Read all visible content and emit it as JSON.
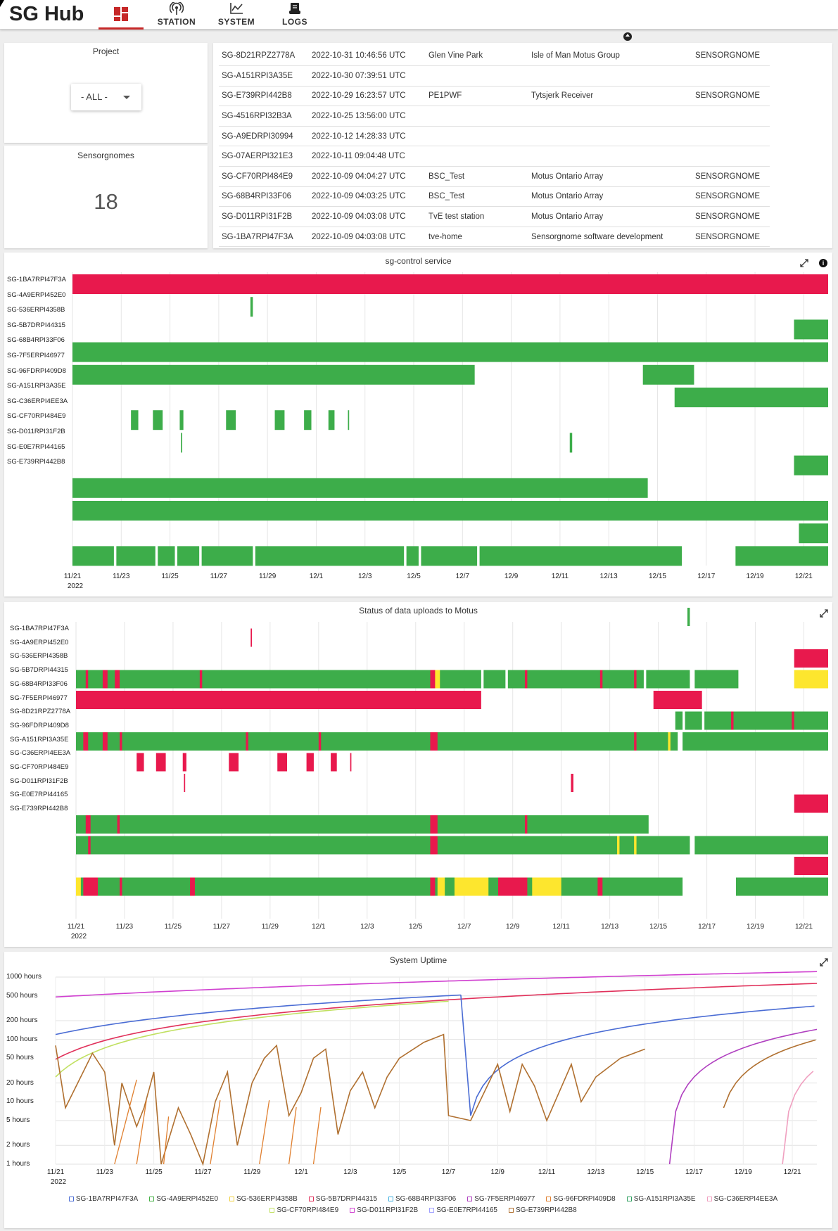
{
  "app": {
    "title": "SG Hub"
  },
  "nav": [
    {
      "label": "STATION"
    },
    {
      "label": "SYSTEM"
    },
    {
      "label": "LOGS"
    }
  ],
  "project": {
    "label": "Project",
    "selected": "- ALL -"
  },
  "sensorgnomes": {
    "label": "Sensorgnomes",
    "count": "18"
  },
  "stations": [
    [
      "SG-8D21RPZ2778A",
      "2022-10-31 10:46:56 UTC",
      "Glen Vine Park",
      "Isle of Man Motus Group",
      "SENSORGNOME"
    ],
    [
      "SG-A151RPI3A35E",
      "2022-10-30 07:39:51 UTC",
      "",
      "",
      ""
    ],
    [
      "SG-E739RPI442B8",
      "2022-10-29 16:23:57 UTC",
      "PE1PWF",
      "Tytsjerk Receiver",
      "SENSORGNOME"
    ],
    [
      "SG-4516RPI32B3A",
      "2022-10-25 13:56:00 UTC",
      "",
      "",
      ""
    ],
    [
      "SG-A9EDRPI30994",
      "2022-10-12 14:28:33 UTC",
      "",
      "",
      ""
    ],
    [
      "SG-07AERPI321E3",
      "2022-10-11 09:04:48 UTC",
      "",
      "",
      ""
    ],
    [
      "SG-CF70RPI484E9",
      "2022-10-09 04:04:27 UTC",
      "BSC_Test",
      "Motus Ontario Array",
      "SENSORGNOME"
    ],
    [
      "SG-68B4RPI33F06",
      "2022-10-09 04:03:25 UTC",
      "BSC_Test",
      "Motus Ontario Array",
      "SENSORGNOME"
    ],
    [
      "SG-D011RPI31F2B",
      "2022-10-09 04:03:08 UTC",
      "TvE test station",
      "Motus Ontario Array",
      "SENSORGNOME"
    ],
    [
      "SG-1BA7RPI47F3A",
      "2022-10-09 04:03:08 UTC",
      "tve-home",
      "Sensorgnome software development",
      "SENSORGNOME"
    ]
  ],
  "colors": {
    "ok": "#3dad4a",
    "bad": "#e8194d",
    "warn": "#fde62e"
  },
  "xaxis": {
    "ticks": [
      "11/21",
      "11/23",
      "11/25",
      "11/27",
      "11/29",
      "12/1",
      "12/3",
      "12/5",
      "12/7",
      "12/9",
      "12/11",
      "12/13",
      "12/15",
      "12/17",
      "12/19",
      "12/21"
    ],
    "year": "2022"
  },
  "control": {
    "title": "sg-control service",
    "labels": [
      "SG-1BA7RPI47F3A",
      "SG-4A9ERPI452E0",
      "SG-536ERPI4358B",
      "SG-5B7DRPI44315",
      "SG-68B4RPI33F06",
      "SG-7F5ERPI46977",
      "SG-96FDRPI409D8",
      "SG-A151RPI3A35E",
      "SG-C36ERPI4EE3A",
      "SG-CF70RPI484E9",
      "SG-D011RPI31F2B",
      "SG-E0E7RPI44165",
      "SG-E739RPI442B8"
    ],
    "rows": [
      [
        [
          "bad",
          0,
          31
        ]
      ],
      [
        [
          "ok",
          7.3,
          7.4
        ]
      ],
      [
        [
          "ok",
          29.6,
          31
        ]
      ],
      [
        [
          "ok",
          0,
          31
        ]
      ],
      [
        [
          "ok",
          0,
          16.5
        ],
        [
          "ok",
          23.4,
          25.5
        ]
      ],
      [
        [
          "ok",
          24.7,
          31
        ]
      ],
      [
        [
          "ok",
          2.4,
          2.7
        ],
        [
          "ok",
          3.3,
          3.7
        ],
        [
          "ok",
          4.4,
          4.55
        ],
        [
          "ok",
          6.3,
          6.7
        ],
        [
          "ok",
          8.3,
          8.7
        ],
        [
          "ok",
          9.5,
          9.8
        ],
        [
          "ok",
          10.5,
          10.75
        ],
        [
          "ok",
          11.3,
          11.35
        ]
      ],
      [
        [
          "ok",
          4.45,
          4.5
        ],
        [
          "ok",
          20.4,
          20.5
        ]
      ],
      [
        [
          "ok",
          29.6,
          31
        ]
      ],
      [
        [
          "ok",
          0,
          23.6
        ]
      ],
      [
        [
          "ok",
          0,
          31
        ]
      ],
      [
        [
          "ok",
          29.8,
          31
        ]
      ],
      [
        [
          "ok",
          0,
          1.7
        ],
        [
          "ok",
          1.8,
          3.4
        ],
        [
          "ok",
          3.5,
          4.2
        ],
        [
          "ok",
          4.3,
          5.2
        ],
        [
          "ok",
          5.3,
          7.4
        ],
        [
          "ok",
          7.5,
          13.6
        ],
        [
          "ok",
          13.7,
          14.2
        ],
        [
          "ok",
          14.3,
          16.6
        ],
        [
          "ok",
          16.7,
          25
        ],
        [
          "ok",
          27.2,
          31
        ]
      ]
    ]
  },
  "uploads": {
    "title": "Status of data uploads to Motus",
    "labels": [
      "SG-1BA7RPI47F3A",
      "SG-4A9ERPI452E0",
      "SG-536ERPI4358B",
      "SG-5B7DRPI44315",
      "SG-68B4RPI33F06",
      "SG-7F5ERPI46977",
      "SG-8D21RPZ2778A",
      "SG-96FDRPI409D8",
      "SG-A151RPI3A35E",
      "SG-C36ERPI4EE3A",
      "SG-CF70RPI484E9",
      "SG-D011RPI31F2B",
      "SG-E0E7RPI44165",
      "SG-E739RPI442B8"
    ],
    "rows": [
      [
        [
          "ok",
          25.2,
          25.3
        ]
      ],
      [
        [
          "bad",
          7.2,
          7.25
        ]
      ],
      [
        [
          "bad",
          29.6,
          31
        ]
      ],
      [
        [
          "ok",
          0,
          16.7
        ],
        [
          "ok",
          16.8,
          17.7
        ],
        [
          "ok",
          17.8,
          23.4
        ],
        [
          "ok",
          23.5,
          25.3
        ],
        [
          "ok",
          25.5,
          27.3
        ],
        [
          "warn",
          29.6,
          31
        ],
        [
          "bad",
          0.4,
          0.5
        ],
        [
          "bad",
          1.1,
          1.3
        ],
        [
          "bad",
          1.6,
          1.8
        ],
        [
          "bad",
          5.1,
          5.2
        ],
        [
          "bad",
          14.6,
          14.9
        ],
        [
          "warn",
          14.8,
          15
        ],
        [
          "bad",
          18.5,
          18.6
        ],
        [
          "bad",
          21.6,
          21.7
        ],
        [
          "bad",
          23,
          23.1
        ]
      ],
      [
        [
          "bad",
          0,
          16.7
        ],
        [
          "bad",
          23.8,
          25.8
        ]
      ],
      [
        [
          "ok",
          24.7,
          25
        ],
        [
          "ok",
          25.1,
          25.8
        ],
        [
          "ok",
          25.9,
          31
        ],
        [
          "bad",
          27,
          27.1
        ],
        [
          "bad",
          29.5,
          29.6
        ]
      ],
      [
        [
          "ok",
          0,
          24.8
        ],
        [
          "ok",
          25,
          31
        ],
        [
          "bad",
          0.3,
          0.5
        ],
        [
          "bad",
          1.1,
          1.3
        ],
        [
          "bad",
          1.8,
          1.9
        ],
        [
          "bad",
          7,
          7.1
        ],
        [
          "bad",
          10,
          10.1
        ],
        [
          "bad",
          14.6,
          14.9
        ],
        [
          "bad",
          23,
          23.1
        ],
        [
          "warn",
          24.4,
          24.5
        ]
      ],
      [
        [
          "bad",
          2.5,
          2.8
        ],
        [
          "bad",
          3.3,
          3.7
        ],
        [
          "bad",
          4.4,
          4.55
        ],
        [
          "bad",
          6.3,
          6.7
        ],
        [
          "bad",
          8.3,
          8.7
        ],
        [
          "bad",
          9.5,
          9.8
        ],
        [
          "bad",
          10.5,
          10.75
        ],
        [
          "bad",
          11.3,
          11.35
        ]
      ],
      [
        [
          "bad",
          4.45,
          4.5
        ],
        [
          "bad",
          20.4,
          20.5
        ]
      ],
      [
        [
          "bad",
          29.6,
          31
        ]
      ],
      [
        [
          "ok",
          0,
          23.6
        ],
        [
          "bad",
          0.4,
          0.6
        ],
        [
          "bad",
          1.7,
          1.8
        ],
        [
          "bad",
          14.6,
          14.9
        ],
        [
          "bad",
          18.5,
          18.6
        ]
      ],
      [
        [
          "ok",
          0,
          25.3
        ],
        [
          "ok",
          25.5,
          31
        ],
        [
          "bad",
          0.5,
          0.6
        ],
        [
          "bad",
          14.6,
          14.9
        ],
        [
          "warn",
          22.3,
          22.4
        ],
        [
          "warn",
          23,
          23.1
        ]
      ],
      [
        [
          "bad",
          29.6,
          31
        ]
      ],
      [
        [
          "ok",
          0,
          25
        ],
        [
          "ok",
          27.2,
          31
        ],
        [
          "warn",
          0,
          0.2
        ],
        [
          "bad",
          0.3,
          0.9
        ],
        [
          "bad",
          1.8,
          1.9
        ],
        [
          "bad",
          4.7,
          4.9
        ],
        [
          "bad",
          14.6,
          14.8
        ],
        [
          "warn",
          14.9,
          15.2
        ],
        [
          "warn",
          15.6,
          17
        ],
        [
          "bad",
          17.4,
          18.6
        ],
        [
          "warn",
          18.8,
          20
        ],
        [
          "bad",
          21.5,
          21.7
        ]
      ]
    ]
  },
  "uptime": {
    "title": "System Uptime",
    "yticks": [
      "1000 hours",
      "500 hours",
      "200 hours",
      "100 hours",
      "50 hours",
      "20 hours",
      "10 hours",
      "5 hours",
      "2 hours",
      "1 hours"
    ],
    "legend": [
      "SG-1BA7RPI47F3A",
      "SG-4A9ERPI452E0",
      "SG-536ERPI4358B",
      "SG-5B7DRPI44315",
      "SG-68B4RPI33F06",
      "SG-7F5ERPI46977",
      "SG-96FDRPI409D8",
      "SG-A151RPI3A35E",
      "SG-C36ERPI4EE3A",
      "SG-CF70RPI484E9",
      "SG-D011RPI31F2B",
      "SG-E0E7RPI44165",
      "SG-E739RPI442B8"
    ],
    "legend_colors": [
      "#4a6cd4",
      "#44b044",
      "#f0d040",
      "#e0305a",
      "#40b0e0",
      "#b040c0",
      "#e08030",
      "#30a060",
      "#f0a0c0",
      "#c0e060",
      "#d040d0",
      "#a0a0ff",
      "#b07030"
    ]
  }
}
